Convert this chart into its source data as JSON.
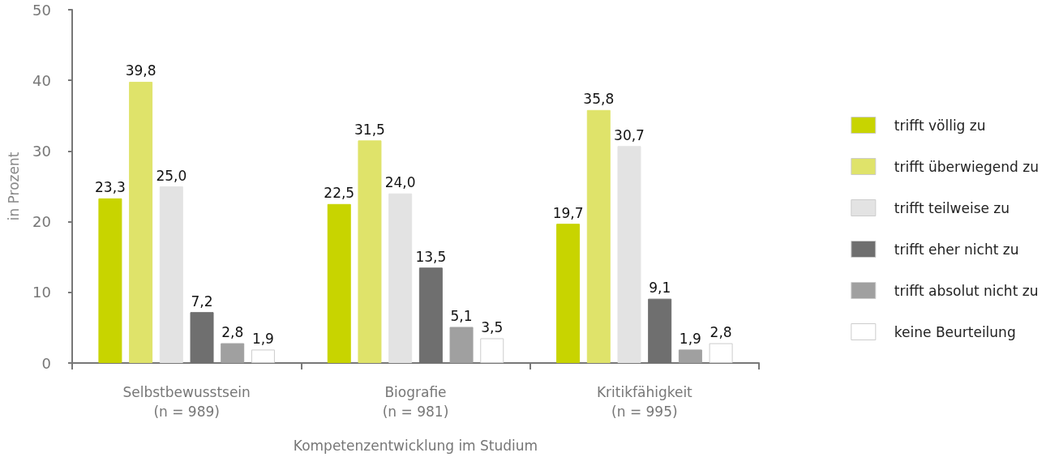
{
  "chart_data": {
    "type": "bar",
    "xlabel": "Kompetenzentwicklung im Studium",
    "ylabel": "in Prozent",
    "categories": [
      "Selbstbewusstsein\n(n = 989)",
      "Biografie\n(n = 981)",
      "Kritikfähigkeit\n(n = 995)"
    ],
    "series": [
      {
        "name": "trifft völlig zu",
        "color": "#c8d400",
        "values": [
          23.3,
          22.5,
          19.7
        ],
        "value_labels": [
          "23,3",
          "22,5",
          "19,7"
        ]
      },
      {
        "name": "trifft überwiegend zu",
        "color": "#dfe36a",
        "values": [
          39.8,
          31.5,
          35.8
        ],
        "value_labels": [
          "39,8",
          "31,5",
          "35,8"
        ]
      },
      {
        "name": "trifft teilweise zu",
        "color": "#e3e3e3",
        "values": [
          25.0,
          24.0,
          30.7
        ],
        "value_labels": [
          "25,0",
          "24,0",
          "30,7"
        ]
      },
      {
        "name": "trifft eher nicht zu",
        "color": "#6f6f6f",
        "values": [
          7.2,
          13.5,
          9.1
        ],
        "value_labels": [
          "7,2",
          "13,5",
          "9,1"
        ]
      },
      {
        "name": "trifft absolut nicht zu",
        "color": "#a0a0a0",
        "values": [
          2.8,
          5.1,
          1.9
        ],
        "value_labels": [
          "2,8",
          "5,1",
          "1,9"
        ]
      },
      {
        "name": "keine Beurteilung",
        "color": "#ffffff",
        "values": [
          1.9,
          3.5,
          2.8
        ],
        "value_labels": [
          "1,9",
          "3,5",
          "2,8"
        ]
      }
    ],
    "ylim": [
      0,
      50
    ],
    "yticks": [
      0,
      10,
      20,
      30,
      40,
      50
    ],
    "grid": false,
    "legend": "right"
  }
}
